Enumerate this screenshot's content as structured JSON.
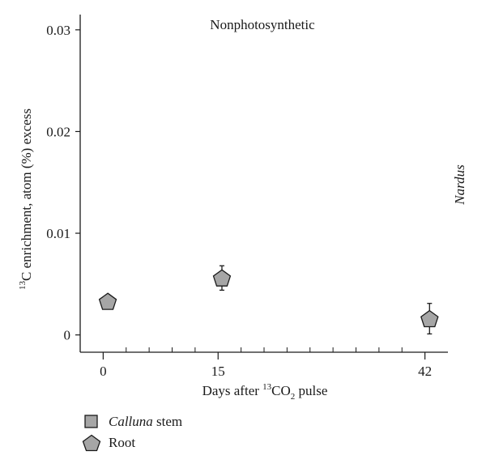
{
  "chart_data": {
    "type": "scatter",
    "title": "Nonphotosynthetic",
    "side_label": "Nardus",
    "xlabel": {
      "prefix": "Days after ",
      "sup": "13",
      "mid": "CO",
      "sub": "2",
      "suffix": " pulse"
    },
    "ylabel": {
      "sup": "13",
      "rest": "C enrichment, atom (%) excess"
    },
    "xlim": [
      -3,
      45
    ],
    "ylim": [
      -0.0017,
      0.0315
    ],
    "x_major_ticks": [
      0,
      15,
      42
    ],
    "x_tick_labels": [
      "0",
      "15",
      "42"
    ],
    "y_ticks": [
      0,
      0.01,
      0.02,
      0.03
    ],
    "y_tick_labels": [
      "0",
      "0.01",
      "0.02",
      "0.03"
    ],
    "grid": false,
    "legend_position": "bottom-left",
    "colors": {
      "marker_fill": "#a6a6a6",
      "marker_stroke": "#1a1a1a",
      "axis": "#1a1a1a"
    },
    "series": [
      {
        "name_italic": "Calluna",
        "name_rest": " stem",
        "marker": "square",
        "points": []
      },
      {
        "name_italic": "",
        "name_rest": "Root",
        "marker": "pentagon",
        "points": [
          {
            "x": 0.6,
            "y": 0.0033,
            "err": 0
          },
          {
            "x": 15.5,
            "y": 0.0056,
            "err": 0.0012
          },
          {
            "x": 42.6,
            "y": 0.0016,
            "err": 0.0015
          }
        ]
      }
    ]
  }
}
